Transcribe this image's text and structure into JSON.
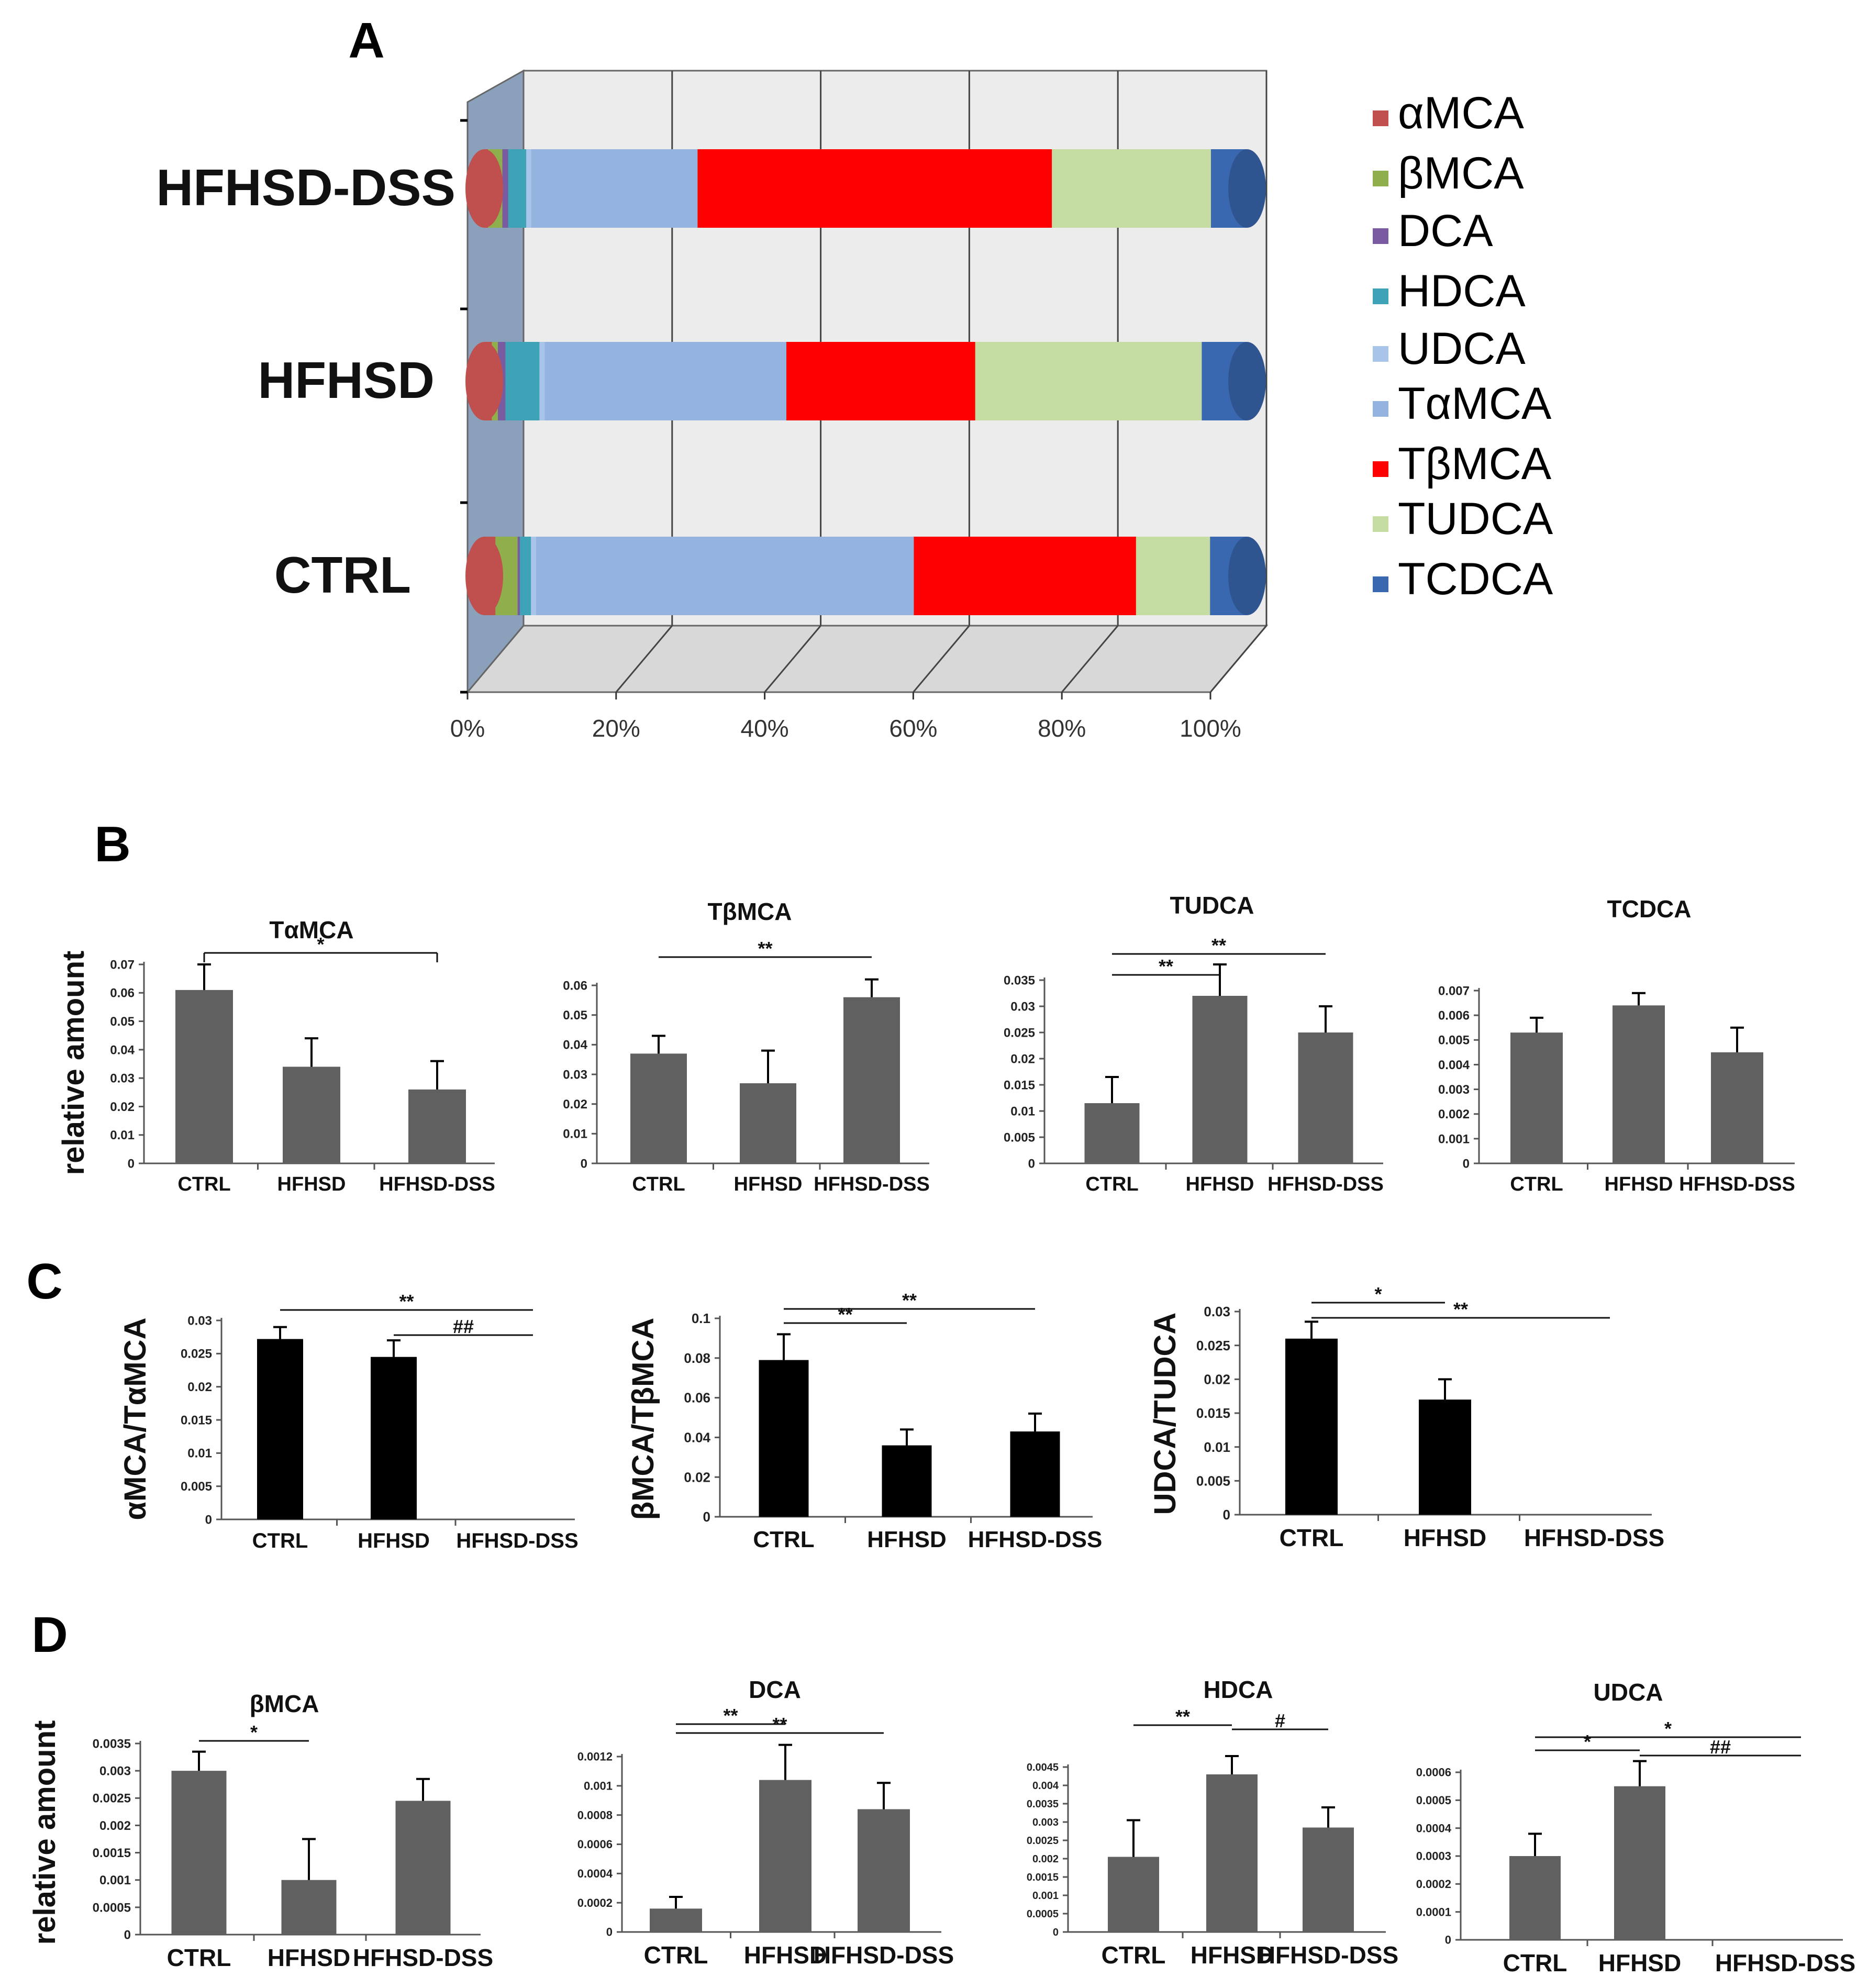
{
  "panel_letters": [
    "A",
    "B",
    "C",
    "D"
  ],
  "colors": {
    "alphaMCA": "#c0504d",
    "betaMCA": "#8fae4c",
    "DCA": "#7a5aa0",
    "HDCA": "#3fa3b8",
    "UDCA": "#a8c4e8",
    "TalphaMCA": "#95b3df",
    "TbetaMCA": "#ff0000",
    "TUDCA": "#c5dca2",
    "TCDCA": "#3a68b0",
    "bar_gray": "#606060",
    "bar_black": "#000000",
    "wall_left": "#8aa0bb",
    "wall_back": "#ececec",
    "floor": "#d8d8d8"
  },
  "chart_data": [
    {
      "panel": "A",
      "type": "bar",
      "orientation": "horizontal",
      "stacked": "percent",
      "three_d": true,
      "categories": [
        "HFHSD-DSS",
        "HFHSD",
        "CTRL"
      ],
      "xticks": [
        "0%",
        "20%",
        "40%",
        "60%",
        "80%",
        "100%"
      ],
      "legend_position": "right",
      "series": [
        {
          "name": "αMCA",
          "color_key": "alphaMCA",
          "values": [
            0.5,
            1.0,
            1.5
          ]
        },
        {
          "name": "βMCA",
          "color_key": "betaMCA",
          "values": [
            2.0,
            0.8,
            3.0
          ]
        },
        {
          "name": "DCA",
          "color_key": "DCA",
          "values": [
            0.8,
            1.0,
            0.3
          ]
        },
        {
          "name": "HDCA",
          "color_key": "HDCA",
          "values": [
            2.5,
            4.5,
            1.5
          ]
        },
        {
          "name": "UDCA",
          "color_key": "UDCA",
          "values": [
            0.7,
            0.7,
            0.7
          ]
        },
        {
          "name": "TαMCA",
          "color_key": "TalphaMCA",
          "values": [
            23,
            32,
            51
          ]
        },
        {
          "name": "TβMCA",
          "color_key": "TbetaMCA",
          "values": [
            49,
            25,
            30
          ]
        },
        {
          "name": "TUDCA",
          "color_key": "TUDCA",
          "values": [
            22,
            30,
            10
          ]
        },
        {
          "name": "TCDCA",
          "color_key": "TCDCA",
          "values": [
            5,
            6,
            5
          ]
        }
      ]
    },
    {
      "panel": "B",
      "type": "bar",
      "title": "TαMCA",
      "ylabel": "relative amount",
      "categories": [
        "CTRL",
        "HFHSD",
        "HFHSD-DSS"
      ],
      "values": [
        0.061,
        0.034,
        0.026
      ],
      "errors": [
        0.009,
        0.01,
        0.01
      ],
      "ylim": [
        0,
        0.07
      ],
      "yticks": [
        "0",
        "0.01",
        "0.02",
        "0.03",
        "0.04",
        "0.05",
        "0.06",
        "0.07"
      ],
      "brackets": [
        {
          "from": 0,
          "to": 2,
          "label": "*"
        }
      ]
    },
    {
      "panel": "B",
      "type": "bar",
      "title": "TβMCA",
      "categories": [
        "CTRL",
        "HFHSD",
        "HFHSD-DSS"
      ],
      "values": [
        0.037,
        0.027,
        0.056
      ],
      "errors": [
        0.006,
        0.011,
        0.006
      ],
      "ylim": [
        0,
        0.06
      ],
      "yticks": [
        "0",
        "0.01",
        "0.02",
        "0.03",
        "0.04",
        "0.05",
        "0.06"
      ],
      "brackets": [
        {
          "from": 0,
          "to": 2,
          "label": "**"
        }
      ]
    },
    {
      "panel": "B",
      "type": "bar",
      "title": "TUDCA",
      "categories": [
        "CTRL",
        "HFHSD",
        "HFHSD-DSS"
      ],
      "values": [
        0.0115,
        0.032,
        0.025
      ],
      "errors": [
        0.005,
        0.006,
        0.005
      ],
      "ylim": [
        0,
        0.035
      ],
      "yticks": [
        "0",
        "0.005",
        "0.01",
        "0.015",
        "0.02",
        "0.025",
        "0.03",
        "0.035"
      ],
      "brackets": [
        {
          "from": 0,
          "to": 1,
          "label": "**"
        },
        {
          "from": 0,
          "to": 2,
          "label": "**"
        }
      ]
    },
    {
      "panel": "B",
      "type": "bar",
      "title": "TCDCA",
      "categories": [
        "CTRL",
        "HFHSD",
        "HFHSD-DSS"
      ],
      "values": [
        0.0053,
        0.0064,
        0.0045
      ],
      "errors": [
        0.0006,
        0.0005,
        0.001
      ],
      "ylim": [
        0,
        0.007
      ],
      "yticks": [
        "0",
        "0.001",
        "0.002",
        "0.003",
        "0.004",
        "0.005",
        "0.006",
        "0.007"
      ],
      "brackets": []
    },
    {
      "panel": "C",
      "type": "bar",
      "title": "",
      "ylabel": "αMCA/TαMCA",
      "categories": [
        "CTRL",
        "HFHSD",
        "HFHSD-DSS"
      ],
      "values": [
        0.0272,
        0.0245,
        0
      ],
      "errors": [
        0.0018,
        0.0025,
        0
      ],
      "ylim": [
        0,
        0.03
      ],
      "yticks": [
        "0",
        "0.005",
        "0.01",
        "0.015",
        "0.02",
        "0.025",
        "0.03"
      ],
      "brackets": [
        {
          "from": 0,
          "to": 2,
          "label": "**"
        },
        {
          "from": 1,
          "to": 2,
          "label": "##"
        }
      ]
    },
    {
      "panel": "C",
      "type": "bar",
      "title": "",
      "ylabel": "βMCA/TβMCA",
      "categories": [
        "CTRL",
        "HFHSD",
        "HFHSD-DSS"
      ],
      "values": [
        0.079,
        0.036,
        0.043
      ],
      "errors": [
        0.013,
        0.008,
        0.009
      ],
      "ylim": [
        0,
        0.1
      ],
      "yticks": [
        "0",
        "0.02",
        "0.04",
        "0.06",
        "0.08",
        "0.1"
      ],
      "brackets": [
        {
          "from": 0,
          "to": 1,
          "label": "**"
        },
        {
          "from": 0,
          "to": 2,
          "label": "**"
        }
      ]
    },
    {
      "panel": "C",
      "type": "bar",
      "title": "",
      "ylabel": "UDCA/TUDCA",
      "categories": [
        "CTRL",
        "HFHSD",
        "HFHSD-DSS"
      ],
      "values": [
        0.026,
        0.017,
        0
      ],
      "errors": [
        0.0025,
        0.003,
        0
      ],
      "ylim": [
        0,
        0.03
      ],
      "yticks": [
        "0",
        "0.005",
        "0.01",
        "0.015",
        "0.02",
        "0.025",
        "0.03"
      ],
      "brackets": [
        {
          "from": 0,
          "to": 1,
          "label": "*"
        },
        {
          "from": 0,
          "to": 2,
          "label": "**"
        }
      ]
    },
    {
      "panel": "D",
      "type": "bar",
      "title": "βMCA",
      "ylabel": "relative amount",
      "categories": [
        "CTRL",
        "HFHSD",
        "HFHSD-DSS"
      ],
      "values": [
        0.003,
        0.001,
        0.00245
      ],
      "errors": [
        0.00035,
        0.00075,
        0.0004
      ],
      "ylim": [
        0,
        0.0035
      ],
      "yticks": [
        "0",
        "0.0005",
        "0.001",
        "0.0015",
        "0.002",
        "0.0025",
        "0.003",
        "0.0035"
      ],
      "brackets": [
        {
          "from": 0,
          "to": 1,
          "label": "*"
        }
      ]
    },
    {
      "panel": "D",
      "type": "bar",
      "title": "DCA",
      "categories": [
        "CTRL",
        "HFHSD",
        "HFHSD-DSS"
      ],
      "values": [
        0.00016,
        0.00104,
        0.00084
      ],
      "errors": [
        8e-05,
        0.00024,
        0.00018
      ],
      "ylim": [
        0,
        0.0012
      ],
      "yticks": [
        "0",
        "0.0002",
        "0.0004",
        "0.0006",
        "0.0008",
        "0.001",
        "0.0012"
      ],
      "brackets": [
        {
          "from": 0,
          "to": 1,
          "label": "**"
        },
        {
          "from": 0,
          "to": 2,
          "label": "**"
        }
      ]
    },
    {
      "panel": "D",
      "type": "bar",
      "title": "HDCA",
      "categories": [
        "CTRL",
        "HFHSD",
        "HFHSD-DSS"
      ],
      "values": [
        0.00205,
        0.0043,
        0.00285
      ],
      "errors": [
        0.001,
        0.0005,
        0.00055
      ],
      "ylim": [
        0,
        0.0045
      ],
      "yticks": [
        "0",
        "0.0005",
        "0.001",
        "0.0015",
        "0.002",
        "0.0025",
        "0.003",
        "0.0035",
        "0.004",
        "0.0045"
      ],
      "brackets": [
        {
          "from": 0,
          "to": 1,
          "label": "**"
        },
        {
          "from": 1,
          "to": 2,
          "label": "#"
        }
      ]
    },
    {
      "panel": "D",
      "type": "bar",
      "title": "UDCA",
      "categories": [
        "CTRL",
        "HFHSD",
        "HFHSD-DSS"
      ],
      "values": [
        0.0003,
        0.00055,
        0
      ],
      "errors": [
        8e-05,
        9e-05,
        0
      ],
      "ylim": [
        0,
        0.0006
      ],
      "yticks": [
        "0",
        "0.0001",
        "0.0002",
        "0.0003",
        "0.0004",
        "0.0005",
        "0.0006"
      ],
      "brackets": [
        {
          "from": 0,
          "to": 1,
          "label": "*"
        },
        {
          "from": 0,
          "to": 2,
          "label": "*"
        },
        {
          "from": 1,
          "to": 2,
          "label": "##"
        }
      ]
    }
  ]
}
